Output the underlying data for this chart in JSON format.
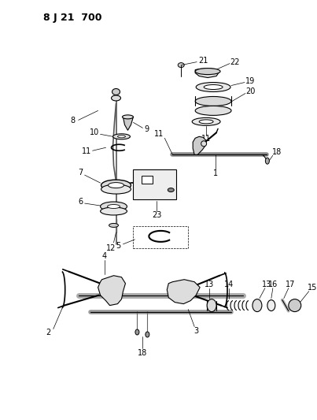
{
  "title": "8 J 21 700",
  "bg_color": "#ffffff",
  "fig_width": 4.03,
  "fig_height": 5.33,
  "dpi": 100
}
